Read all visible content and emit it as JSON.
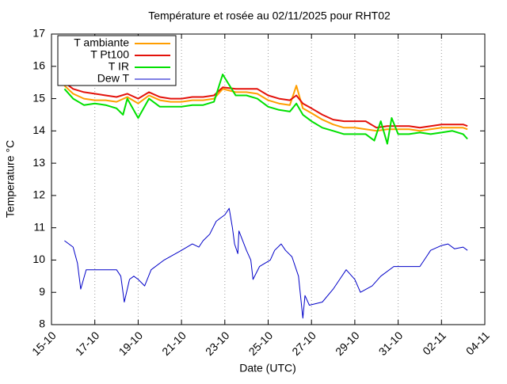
{
  "chart_data": {
    "type": "line",
    "title": "Température et rosée au 02/11/2025 pour RHT02",
    "x_label": "Date (UTC)",
    "y_label": "Temperature °C",
    "xlim": [
      0,
      20
    ],
    "xticks": [
      {
        "value": 0,
        "label": "15-10"
      },
      {
        "value": 2,
        "label": "17-10"
      },
      {
        "value": 4,
        "label": "19-10"
      },
      {
        "value": 6,
        "label": "21-10"
      },
      {
        "value": 8,
        "label": "23-10"
      },
      {
        "value": 10,
        "label": "25-10"
      },
      {
        "value": 12,
        "label": "27-10"
      },
      {
        "value": 14,
        "label": "29-10"
      },
      {
        "value": 16,
        "label": "31-10"
      },
      {
        "value": 18,
        "label": "02-11"
      },
      {
        "value": 20,
        "label": "04-11"
      }
    ],
    "ylim": [
      8,
      17
    ],
    "yticks": [
      8,
      9,
      10,
      11,
      12,
      13,
      14,
      15,
      16,
      17
    ],
    "xgrid": true,
    "legend": "top-left",
    "series": [
      {
        "name": "T ambiante",
        "color": "#ff9e00",
        "x": [
          0.6,
          1,
          1.5,
          2,
          2.5,
          3,
          3.5,
          4,
          4.5,
          5,
          5.5,
          6,
          6.5,
          7,
          7.5,
          7.9,
          8.5,
          9,
          9.5,
          10,
          10.5,
          11,
          11.3,
          11.6,
          12,
          12.5,
          13,
          13.5,
          14,
          14.5,
          15,
          15.5,
          16,
          16.5,
          17,
          17.5,
          18,
          18.5,
          19,
          19.2
        ],
        "values": [
          15.4,
          15.15,
          15.0,
          14.95,
          14.95,
          14.9,
          15.05,
          14.85,
          15.1,
          14.95,
          14.9,
          14.9,
          14.95,
          14.95,
          15.0,
          15.3,
          15.2,
          15.2,
          15.15,
          14.95,
          14.85,
          14.8,
          15.4,
          14.7,
          14.55,
          14.35,
          14.2,
          14.1,
          14.1,
          14.05,
          14.0,
          14.05,
          14.05,
          14.05,
          14.0,
          14.05,
          14.1,
          14.1,
          14.1,
          14.05
        ]
      },
      {
        "name": "T Pt100",
        "color": "#e3120b",
        "x": [
          0.6,
          1,
          1.5,
          2,
          2.5,
          3,
          3.5,
          4,
          4.5,
          5,
          5.5,
          6,
          6.5,
          7,
          7.5,
          7.9,
          8.5,
          9,
          9.5,
          10,
          10.5,
          11,
          11.3,
          11.6,
          12,
          12.5,
          13,
          13.5,
          14,
          14.5,
          15,
          15.5,
          16,
          16.5,
          17,
          17.5,
          18,
          18.5,
          19,
          19.2
        ],
        "values": [
          15.5,
          15.3,
          15.2,
          15.15,
          15.1,
          15.05,
          15.15,
          15.0,
          15.2,
          15.05,
          15.0,
          15.0,
          15.05,
          15.05,
          15.1,
          15.35,
          15.3,
          15.3,
          15.3,
          15.1,
          15.0,
          14.95,
          15.1,
          14.85,
          14.7,
          14.5,
          14.35,
          14.3,
          14.3,
          14.3,
          14.1,
          14.15,
          14.15,
          14.15,
          14.1,
          14.15,
          14.2,
          14.2,
          14.2,
          14.15
        ]
      },
      {
        "name": "T IR",
        "color": "#00e000",
        "x": [
          0.6,
          1,
          1.5,
          2,
          2.5,
          3,
          3.3,
          3.5,
          4,
          4.5,
          5,
          5.5,
          6,
          6.5,
          7,
          7.5,
          7.9,
          8.5,
          9,
          9.5,
          10,
          10.5,
          11,
          11.3,
          11.6,
          12,
          12.5,
          13,
          13.5,
          14,
          14.5,
          14.9,
          15.2,
          15.5,
          15.7,
          16,
          16.5,
          17,
          17.5,
          18,
          18.5,
          19,
          19.2
        ],
        "values": [
          15.3,
          15.0,
          14.8,
          14.85,
          14.8,
          14.7,
          14.5,
          15.0,
          14.4,
          15.0,
          14.75,
          14.75,
          14.75,
          14.8,
          14.8,
          14.9,
          15.75,
          15.1,
          15.1,
          15.0,
          14.75,
          14.65,
          14.6,
          14.85,
          14.5,
          14.3,
          14.1,
          14.0,
          13.9,
          13.9,
          13.9,
          13.7,
          14.3,
          13.6,
          14.4,
          13.9,
          13.9,
          13.95,
          13.9,
          13.95,
          14.0,
          13.9,
          13.75
        ]
      },
      {
        "name": "Dew T",
        "color": "#0000c8",
        "x": [
          0.6,
          1,
          1.2,
          1.35,
          1.6,
          2,
          2.5,
          3,
          3.2,
          3.36,
          3.6,
          3.8,
          4.0,
          4.3,
          4.6,
          5.2,
          6,
          6.5,
          6.8,
          7,
          7.3,
          7.6,
          7.8,
          8.0,
          8.2,
          8.35,
          8.45,
          8.6,
          8.65,
          9.0,
          9.2,
          9.3,
          9.6,
          10.1,
          10.3,
          10.6,
          10.8,
          11.1,
          11.4,
          11.6,
          11.7,
          11.9,
          12.5,
          13.0,
          13.3,
          13.6,
          14.0,
          14.26,
          14.8,
          15.2,
          15.8,
          16.3,
          17.0,
          17.3,
          17.5,
          18.0,
          18.3,
          18.6,
          19.0,
          19.2
        ],
        "values": [
          10.6,
          10.4,
          9.9,
          9.1,
          9.7,
          9.7,
          9.7,
          9.7,
          9.5,
          8.7,
          9.4,
          9.5,
          9.4,
          9.2,
          9.7,
          10.0,
          10.3,
          10.5,
          10.4,
          10.6,
          10.8,
          11.2,
          11.3,
          11.4,
          11.6,
          11.0,
          10.5,
          10.2,
          10.9,
          10.3,
          10.0,
          9.4,
          9.8,
          10.0,
          10.3,
          10.5,
          10.3,
          10.1,
          9.5,
          8.2,
          8.9,
          8.6,
          8.7,
          9.1,
          9.4,
          9.7,
          9.4,
          9.0,
          9.2,
          9.5,
          9.8,
          9.8,
          9.8,
          10.1,
          10.3,
          10.45,
          10.5,
          10.35,
          10.4,
          10.3
        ]
      }
    ]
  }
}
